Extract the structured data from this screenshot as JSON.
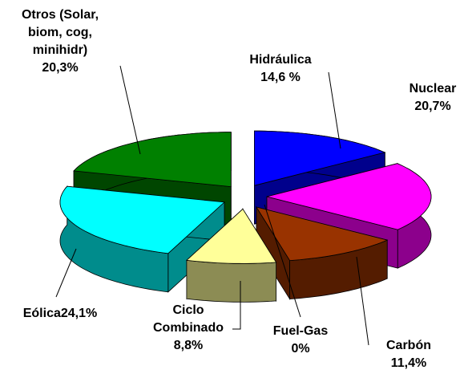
{
  "chart_data": {
    "type": "pie3d",
    "categories": [
      "Hidráulica",
      "Nuclear",
      "Carbón",
      "Fuel-Gas",
      "Ciclo Combinado",
      "Eólica",
      "Otros (Solar, biom, cog, minihidr)"
    ],
    "values": [
      14.6,
      20.7,
      11.4,
      0,
      8.8,
      24.1,
      20.3
    ],
    "value_labels": [
      "14,6 %",
      "20,7%",
      "11,4%",
      "0%",
      "8,8%",
      "24,1%",
      "20,3%"
    ],
    "colors": [
      "#0000ff",
      "#ff00ff",
      "#993300",
      "#808000",
      "#ffff99",
      "#00ffff",
      "#008000"
    ]
  }
}
